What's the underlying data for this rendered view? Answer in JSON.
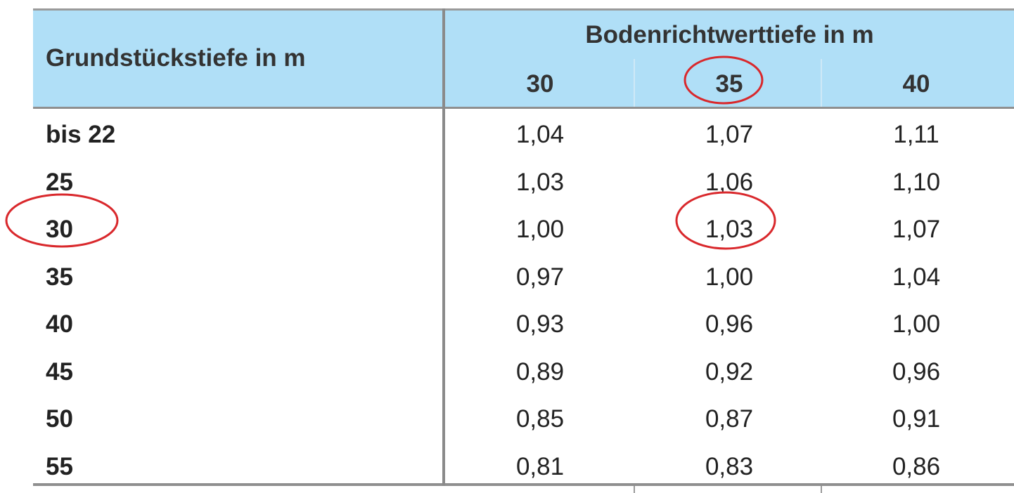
{
  "table": {
    "row_header": "Grundstückstiefe in m",
    "group_header": "Bodenrichtwerttiefe in m",
    "columns": [
      "30",
      "35",
      "40"
    ],
    "rows": [
      {
        "label": "bis 22",
        "values": [
          "1,04",
          "1,07",
          "1,11"
        ]
      },
      {
        "label": "25",
        "values": [
          "1,03",
          "1,06",
          "1,10"
        ]
      },
      {
        "label": "30",
        "values": [
          "1,00",
          "1,03",
          "1,07"
        ]
      },
      {
        "label": "35",
        "values": [
          "0,97",
          "1,00",
          "1,04"
        ]
      },
      {
        "label": "40",
        "values": [
          "0,93",
          "0,96",
          "1,00"
        ]
      },
      {
        "label": "45",
        "values": [
          "0,89",
          "0,92",
          "0,96"
        ]
      },
      {
        "label": "50",
        "values": [
          "0,85",
          "0,87",
          "0,91"
        ]
      },
      {
        "label": "55",
        "values": [
          "0,81",
          "0,83",
          "0,86"
        ]
      }
    ]
  },
  "highlights": {
    "color": "#d9282c",
    "items": [
      "column 35",
      "row 30",
      "cell 1,03"
    ]
  },
  "colors": {
    "header_background": "#b0dff7",
    "rules": "#8f8f8f"
  }
}
